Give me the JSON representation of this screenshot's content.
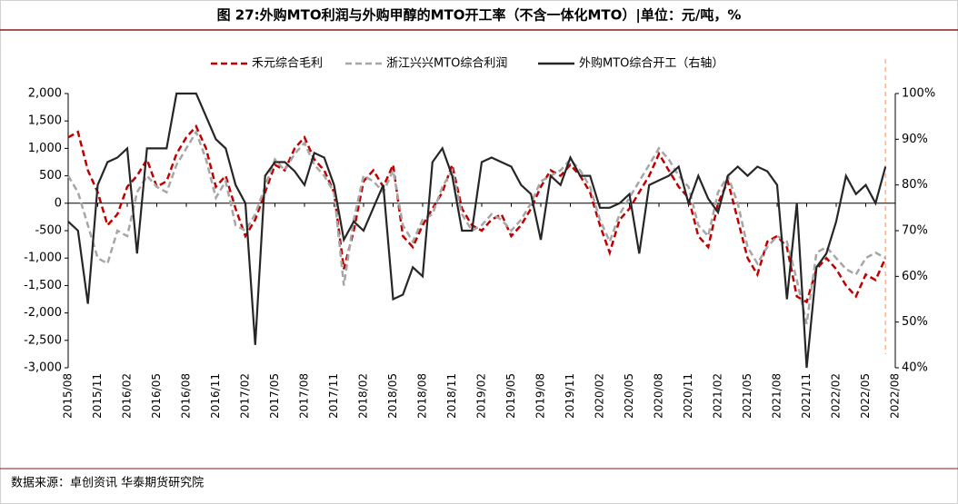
{
  "chart_data": {
    "type": "line",
    "title": "图 27:外购MTO利润与外购甲醇的MTO开工率（不含一体化MTO）|单位：元/吨，%",
    "source": "数据来源：卓创资讯  华泰期货研究院",
    "x": [
      "2015/08",
      "2015/09",
      "2015/10",
      "2015/11",
      "2015/12",
      "2016/01",
      "2016/02",
      "2016/03",
      "2016/04",
      "2016/05",
      "2016/06",
      "2016/07",
      "2016/08",
      "2016/09",
      "2016/10",
      "2016/11",
      "2016/12",
      "2017/01",
      "2017/02",
      "2017/03",
      "2017/04",
      "2017/05",
      "2017/06",
      "2017/07",
      "2017/08",
      "2017/09",
      "2017/10",
      "2017/11",
      "2017/12",
      "2018/01",
      "2018/02",
      "2018/03",
      "2018/04",
      "2018/05",
      "2018/06",
      "2018/07",
      "2018/08",
      "2018/09",
      "2018/10",
      "2018/11",
      "2018/12",
      "2019/01",
      "2019/02",
      "2019/03",
      "2019/04",
      "2019/05",
      "2019/06",
      "2019/07",
      "2019/08",
      "2019/09",
      "2019/10",
      "2019/11",
      "2019/12",
      "2020/01",
      "2020/02",
      "2020/03",
      "2020/04",
      "2020/05",
      "2020/06",
      "2020/07",
      "2020/08",
      "2020/09",
      "2020/10",
      "2020/11",
      "2020/12",
      "2021/01",
      "2021/02",
      "2021/03",
      "2021/04",
      "2021/05",
      "2021/06",
      "2021/07",
      "2021/08",
      "2021/09",
      "2021/10",
      "2021/11",
      "2021/12",
      "2022/01",
      "2022/02",
      "2022/03",
      "2022/04",
      "2022/05",
      "2022/06",
      "2022/07"
    ],
    "xlim": [
      "2015/08",
      "2022/08"
    ],
    "xticks": [
      "2015/08",
      "2015/11",
      "2016/02",
      "2016/05",
      "2016/08",
      "2016/11",
      "2017/02",
      "2017/05",
      "2017/08",
      "2017/11",
      "2018/02",
      "2018/05",
      "2018/08",
      "2018/11",
      "2019/02",
      "2019/05",
      "2019/08",
      "2019/11",
      "2020/02",
      "2020/05",
      "2020/08",
      "2020/11",
      "2021/02",
      "2021/05",
      "2021/08",
      "2021/11",
      "2022/02",
      "2022/05",
      "2022/08"
    ],
    "marker_x": "2022/07",
    "series": [
      {
        "name": "禾元综合毛利",
        "color": "#c00000",
        "dash": true,
        "values": [
          1200,
          1300,
          600,
          200,
          -400,
          -200,
          300,
          500,
          800,
          300,
          400,
          900,
          1200,
          1400,
          1000,
          300,
          500,
          -100,
          -600,
          -300,
          200,
          700,
          600,
          1000,
          1200,
          800,
          600,
          200,
          -1200,
          -500,
          400,
          600,
          300,
          700,
          -600,
          -800,
          -400,
          -100,
          200,
          700,
          -100,
          -400,
          -500,
          -300,
          -200,
          -600,
          -400,
          -100,
          300,
          600,
          500,
          700,
          500,
          200,
          -400,
          -900,
          -300,
          -100,
          200,
          500,
          900,
          600,
          300,
          100,
          -600,
          -800,
          0,
          400,
          -300,
          -1000,
          -1300,
          -700,
          -600,
          -800,
          -1700,
          -1800,
          -1200,
          -1000,
          -1200,
          -1500,
          -1700,
          -1300,
          -1400,
          -1000
        ]
      },
      {
        "name": "浙江兴兴MTO综合利润",
        "color": "#a6a6a6",
        "dash": true,
        "values": [
          500,
          200,
          -400,
          -1000,
          -1100,
          -500,
          -600,
          200,
          500,
          300,
          200,
          700,
          1000,
          1300,
          800,
          100,
          400,
          -400,
          -500,
          -200,
          300,
          800,
          600,
          900,
          1100,
          700,
          500,
          200,
          -1500,
          -300,
          500,
          400,
          200,
          600,
          -400,
          -700,
          -300,
          -200,
          300,
          600,
          -200,
          -500,
          -400,
          -200,
          -300,
          -500,
          -300,
          0,
          400,
          500,
          600,
          800,
          600,
          300,
          -300,
          -700,
          -200,
          100,
          400,
          700,
          1000,
          800,
          500,
          300,
          -400,
          -600,
          200,
          500,
          0,
          -800,
          -1100,
          -800,
          -600,
          -700,
          -1400,
          -2200,
          -900,
          -800,
          -1000,
          -1200,
          -1300,
          -1000,
          -900,
          -1000
        ]
      },
      {
        "name": "外购MTO综合开工（右轴）",
        "color": "#262626",
        "dash": false,
        "axis": "y2",
        "values": [
          72,
          70,
          54,
          80,
          85,
          86,
          88,
          65,
          88,
          88,
          88,
          100,
          100,
          100,
          95,
          90,
          88,
          80,
          76,
          45,
          82,
          85,
          85,
          83,
          80,
          87,
          86,
          80,
          68,
          72,
          70,
          75,
          80,
          55,
          56,
          62,
          60,
          85,
          88,
          82,
          70,
          70,
          85,
          86,
          85,
          84,
          80,
          78,
          68,
          82,
          80,
          86,
          82,
          82,
          75,
          75,
          76,
          78,
          65,
          80,
          81,
          82,
          84,
          76,
          82,
          77,
          74,
          82,
          84,
          82,
          84,
          83,
          80,
          55,
          76,
          40,
          62,
          65,
          72,
          82,
          78,
          80,
          76,
          84
        ]
      }
    ],
    "ylim": [
      -3000,
      2000
    ],
    "yticks": [
      {
        "value": -3000,
        "label": "-3,000"
      },
      {
        "value": -2500,
        "label": "-2,500"
      },
      {
        "value": -2000,
        "label": "-2,000"
      },
      {
        "value": -1500,
        "label": "-1,500"
      },
      {
        "value": -1000,
        "label": "-1,000"
      },
      -500,
      0,
      500,
      {
        "value": 1000,
        "label": "1,000"
      },
      {
        "value": 1500,
        "label": "1,500"
      },
      {
        "value": 2000,
        "label": "2,000"
      }
    ],
    "y2lim": [
      40,
      100
    ],
    "y2ticks": [
      {
        "value": 40,
        "label": "40%"
      },
      {
        "value": 50,
        "label": "50%"
      },
      {
        "value": 60,
        "label": "60%"
      },
      {
        "value": 70,
        "label": "70%"
      },
      {
        "value": 80,
        "label": "80%"
      },
      {
        "value": 90,
        "label": "90%"
      },
      {
        "value": 100,
        "label": "100%"
      }
    ]
  }
}
